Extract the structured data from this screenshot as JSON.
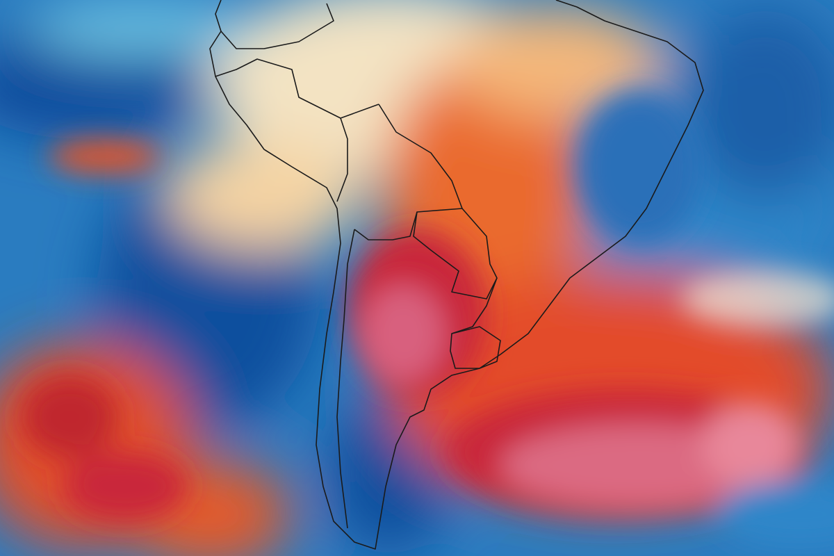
{
  "map": {
    "region": "South America",
    "colors": {
      "cold_deep": "#0f4c9c",
      "cold": "#2d86c9",
      "cool": "#6cc3e3",
      "neutral": "#f3e8d0",
      "warm": "#f4b77a",
      "hot": "#ea5a2a",
      "very_hot": "#c9283a",
      "extreme": "#e0738a",
      "border": "#1a1a1a"
    }
  }
}
